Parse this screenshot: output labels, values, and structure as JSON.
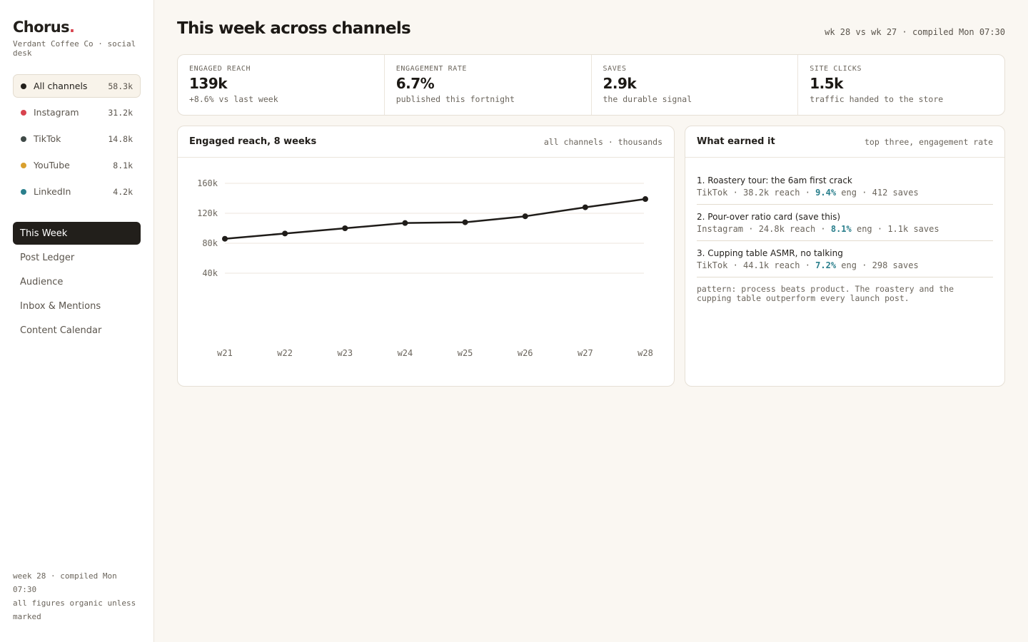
{
  "brand": {
    "name": "Chorus",
    "dot": ".",
    "sub": "Verdant Coffee Co · social desk"
  },
  "channels": [
    {
      "name": "All channels",
      "value": "58.3k",
      "color": "#221f1b",
      "active": true
    },
    {
      "name": "Instagram",
      "value": "31.2k",
      "color": "#d8434e"
    },
    {
      "name": "TikTok",
      "value": "14.8k",
      "color": "#3f4a47"
    },
    {
      "name": "YouTube",
      "value": "8.1k",
      "color": "#d9a02e"
    },
    {
      "name": "LinkedIn",
      "value": "4.2k",
      "color": "#2a7f8c"
    }
  ],
  "nav": [
    {
      "label": "This Week",
      "active": true
    },
    {
      "label": "Post Ledger"
    },
    {
      "label": "Audience"
    },
    {
      "label": "Inbox & Mentions"
    },
    {
      "label": "Content Calendar"
    }
  ],
  "sidebar_footer": {
    "line1": "week 28 · compiled Mon 07:30",
    "line2": "all figures organic unless marked"
  },
  "header": {
    "title": "This week across channels",
    "meta": "wk 28 vs wk 27 · compiled Mon 07:30"
  },
  "kpis": [
    {
      "label": "ENGAGED REACH",
      "value": "139k",
      "sub": "+8.6% vs last week"
    },
    {
      "label": "ENGAGEMENT RATE",
      "value": "6.7%",
      "sub": "published this fortnight"
    },
    {
      "label": "SAVES",
      "value": "2.9k",
      "sub": "the durable signal"
    },
    {
      "label": "SITE CLICKS",
      "value": "1.5k",
      "sub": "traffic handed to the store"
    }
  ],
  "reach_card": {
    "title": "Engaged reach, 8 weeks",
    "meta": "all channels · thousands"
  },
  "chart_data": {
    "type": "line",
    "x": [
      "w21",
      "w22",
      "w23",
      "w24",
      "w25",
      "w26",
      "w27",
      "w28"
    ],
    "series": [
      {
        "values": [
          86,
          93,
          100,
          107,
          108,
          116,
          128,
          139
        ]
      }
    ],
    "yticks": [
      40,
      80,
      120,
      160
    ],
    "ytick_labels": [
      "40k",
      "80k",
      "120k",
      "160k"
    ],
    "ylim": [
      0,
      160
    ],
    "grid": true,
    "line_color": "#1f1c19"
  },
  "top_card": {
    "title": "What earned it",
    "meta": "top three, engagement rate",
    "items": [
      {
        "title": "1. Roastery tour: the 6am first crack",
        "pre": "TikTok · 38.2k reach · ",
        "eng": "9.4%",
        "post": " eng · 412 saves"
      },
      {
        "title": "2. Pour-over ratio card (save this)",
        "pre": "Instagram · 24.8k reach · ",
        "eng": "8.1%",
        "post": " eng · 1.1k saves"
      },
      {
        "title": "3. Cupping table ASMR, no talking",
        "pre": "TikTok · 44.1k reach · ",
        "eng": "7.2%",
        "post": " eng · 298 saves"
      }
    ],
    "pattern": "pattern: process beats product. The roastery and the cupping table outperform every launch post."
  }
}
